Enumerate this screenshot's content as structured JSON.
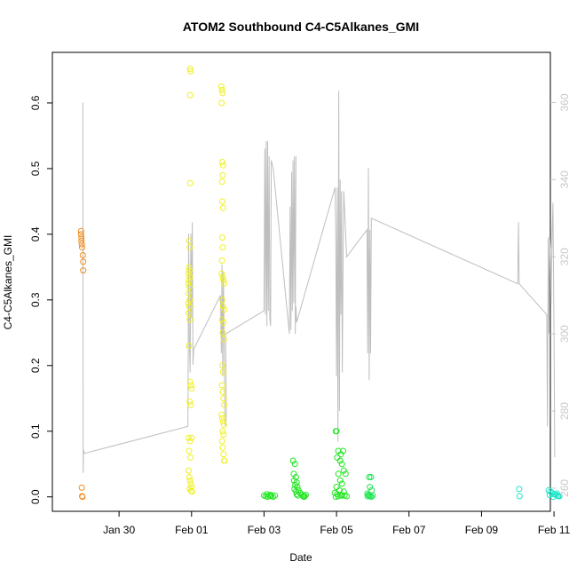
{
  "chart_data": {
    "type": "scatter",
    "title": "ATOM2 Southbound C4-C5Alkanes_GMI",
    "xlabel": "Date",
    "ylabel": "C4-C5Alkanes_GMI",
    "x_unit": "days since Jan 29 00:00",
    "xlim": [
      -0.84,
      12.9
    ],
    "ylim": [
      -0.022,
      0.677
    ],
    "y2lim": [
      254,
      373
    ],
    "x_ticks": [
      {
        "label": "Jan 30",
        "value": 1
      },
      {
        "label": "Feb 01",
        "value": 3
      },
      {
        "label": "Feb 03",
        "value": 5
      },
      {
        "label": "Feb 05",
        "value": 7
      },
      {
        "label": "Feb 07",
        "value": 9
      },
      {
        "label": "Feb 09",
        "value": 11
      },
      {
        "label": "Feb 11",
        "value": 13
      }
    ],
    "y_ticks": [
      "0.0",
      "0.1",
      "0.2",
      "0.3",
      "0.4",
      "0.5",
      "0.6"
    ],
    "y2_ticks": [
      "260",
      "280",
      "300",
      "320",
      "340",
      "360"
    ],
    "series": [
      {
        "color": "#f08c1e",
        "points": [
          [
            -0.05,
            0.405
          ],
          [
            -0.05,
            0.4
          ],
          [
            -0.04,
            0.395
          ],
          [
            -0.04,
            0.39
          ],
          [
            -0.03,
            0.385
          ],
          [
            -0.02,
            0.38
          ],
          [
            0.0,
            0.368
          ],
          [
            0.01,
            0.358
          ],
          [
            0.01,
            0.345
          ],
          [
            -0.03,
            0.014
          ],
          [
            -0.02,
            0.001
          ],
          [
            -0.01,
            0.0
          ]
        ]
      },
      {
        "color": "#f0f01e",
        "points": [
          [
            2.96,
            0.652
          ],
          [
            2.97,
            0.648
          ],
          [
            2.96,
            0.612
          ],
          [
            2.96,
            0.478
          ],
          [
            2.93,
            0.39
          ],
          [
            2.95,
            0.38
          ],
          [
            2.93,
            0.35
          ],
          [
            2.94,
            0.345
          ],
          [
            2.92,
            0.34
          ],
          [
            2.95,
            0.335
          ],
          [
            2.93,
            0.33
          ],
          [
            2.91,
            0.325
          ],
          [
            2.94,
            0.32
          ],
          [
            2.92,
            0.31
          ],
          [
            2.95,
            0.3
          ],
          [
            2.91,
            0.295
          ],
          [
            2.94,
            0.29
          ],
          [
            2.92,
            0.28
          ],
          [
            2.95,
            0.27
          ],
          [
            2.93,
            0.23
          ],
          [
            2.96,
            0.175
          ],
          [
            2.98,
            0.17
          ],
          [
            3.0,
            0.165
          ],
          [
            2.95,
            0.145
          ],
          [
            2.98,
            0.14
          ],
          [
            2.92,
            0.09
          ],
          [
            2.96,
            0.085
          ],
          [
            3.0,
            0.09
          ],
          [
            2.93,
            0.07
          ],
          [
            2.97,
            0.06
          ],
          [
            2.92,
            0.04
          ],
          [
            2.94,
            0.03
          ],
          [
            2.96,
            0.025
          ],
          [
            2.98,
            0.02
          ],
          [
            3.0,
            0.015
          ],
          [
            2.95,
            0.012
          ],
          [
            2.99,
            0.009
          ],
          [
            3.01,
            0.008
          ],
          [
            3.82,
            0.625
          ],
          [
            3.84,
            0.62
          ],
          [
            3.86,
            0.615
          ],
          [
            3.83,
            0.6
          ],
          [
            3.85,
            0.51
          ],
          [
            3.87,
            0.505
          ],
          [
            3.86,
            0.49
          ],
          [
            3.84,
            0.48
          ],
          [
            3.85,
            0.45
          ],
          [
            3.87,
            0.44
          ],
          [
            3.85,
            0.395
          ],
          [
            3.86,
            0.38
          ],
          [
            3.84,
            0.36
          ],
          [
            3.83,
            0.34
          ],
          [
            3.86,
            0.335
          ],
          [
            3.88,
            0.33
          ],
          [
            3.9,
            0.325
          ],
          [
            3.85,
            0.3
          ],
          [
            3.87,
            0.29
          ],
          [
            3.9,
            0.285
          ],
          [
            3.84,
            0.27
          ],
          [
            3.88,
            0.265
          ],
          [
            3.86,
            0.25
          ],
          [
            3.89,
            0.24
          ],
          [
            3.85,
            0.2
          ],
          [
            3.87,
            0.19
          ],
          [
            3.84,
            0.17
          ],
          [
            3.86,
            0.16
          ],
          [
            3.88,
            0.15
          ],
          [
            3.9,
            0.14
          ],
          [
            3.83,
            0.125
          ],
          [
            3.85,
            0.12
          ],
          [
            3.87,
            0.115
          ],
          [
            3.89,
            0.11
          ],
          [
            3.86,
            0.1
          ],
          [
            3.88,
            0.095
          ],
          [
            3.84,
            0.085
          ],
          [
            3.86,
            0.075
          ],
          [
            3.88,
            0.065
          ],
          [
            3.9,
            0.055
          ],
          [
            3.91,
            0.055
          ]
        ]
      },
      {
        "color": "#1ee61e",
        "points": [
          [
            5.0,
            0.002
          ],
          [
            5.05,
            0.001
          ],
          [
            5.1,
            0.0
          ],
          [
            5.15,
            0.002
          ],
          [
            5.2,
            0.001
          ],
          [
            5.25,
            0.0
          ],
          [
            5.3,
            0.002
          ],
          [
            5.08,
            0.004
          ],
          [
            5.18,
            0.003
          ],
          [
            5.8,
            0.055
          ],
          [
            5.85,
            0.05
          ],
          [
            5.82,
            0.035
          ],
          [
            5.88,
            0.03
          ],
          [
            5.83,
            0.025
          ],
          [
            5.9,
            0.022
          ],
          [
            5.86,
            0.018
          ],
          [
            5.92,
            0.015
          ],
          [
            5.84,
            0.012
          ],
          [
            5.95,
            0.01
          ],
          [
            5.88,
            0.008
          ],
          [
            6.0,
            0.006
          ],
          [
            5.9,
            0.004
          ],
          [
            6.05,
            0.003
          ],
          [
            5.93,
            0.002
          ],
          [
            6.08,
            0.001
          ],
          [
            6.1,
            0.0
          ],
          [
            6.12,
            0.001
          ],
          [
            6.15,
            0.003
          ],
          [
            6.98,
            0.1
          ],
          [
            7.0,
            0.1
          ],
          [
            7.05,
            0.07
          ],
          [
            7.12,
            0.065
          ],
          [
            7.18,
            0.07
          ],
          [
            7.02,
            0.06
          ],
          [
            7.1,
            0.055
          ],
          [
            7.15,
            0.05
          ],
          [
            7.2,
            0.04
          ],
          [
            7.25,
            0.035
          ],
          [
            7.05,
            0.035
          ],
          [
            7.1,
            0.025
          ],
          [
            7.15,
            0.02
          ],
          [
            7.0,
            0.015
          ],
          [
            7.08,
            0.01
          ],
          [
            7.2,
            0.008
          ],
          [
            6.95,
            0.006
          ],
          [
            7.02,
            0.004
          ],
          [
            7.12,
            0.003
          ],
          [
            7.22,
            0.002
          ],
          [
            7.28,
            0.001
          ],
          [
            6.98,
            0.0
          ],
          [
            7.05,
            0.001
          ],
          [
            7.15,
            0.002
          ]
        ]
      },
      {
        "color": "#1ee650",
        "points": [
          [
            7.9,
            0.03
          ],
          [
            7.95,
            0.03
          ],
          [
            7.92,
            0.015
          ],
          [
            7.97,
            0.01
          ],
          [
            7.85,
            0.005
          ],
          [
            7.88,
            0.003
          ],
          [
            7.9,
            0.002
          ],
          [
            7.93,
            0.001
          ],
          [
            7.96,
            0.0
          ],
          [
            8.0,
            0.002
          ],
          [
            7.86,
            0.001
          ]
        ]
      },
      {
        "color": "#1ee6c8",
        "points": [
          [
            12.04,
            0.012
          ],
          [
            12.05,
            0.001
          ],
          [
            12.85,
            0.01
          ],
          [
            12.9,
            0.008
          ],
          [
            12.95,
            0.006
          ],
          [
            13.0,
            0.004
          ],
          [
            13.05,
            0.003
          ],
          [
            13.1,
            0.002
          ],
          [
            13.15,
            0.001
          ],
          [
            12.88,
            0.003
          ],
          [
            12.98,
            0.0
          ],
          [
            13.08,
            0.005
          ],
          [
            13.12,
            0.001
          ]
        ]
      }
    ],
    "secondary_line": {
      "color": "#bebebe",
      "points": [
        [
          0.0,
          360
        ],
        [
          0.01,
          264
        ],
        [
          0.02,
          270
        ],
        [
          0.04,
          269
        ],
        [
          2.9,
          276
        ],
        [
          2.92,
          326
        ],
        [
          2.94,
          298
        ],
        [
          2.96,
          290
        ],
        [
          2.98,
          326
        ],
        [
          3.0,
          304
        ],
        [
          3.02,
          329
        ],
        [
          3.04,
          292
        ],
        [
          3.06,
          296
        ],
        [
          3.8,
          310
        ],
        [
          3.82,
          295
        ],
        [
          3.84,
          318
        ],
        [
          3.86,
          289
        ],
        [
          3.88,
          316
        ],
        [
          3.9,
          298
        ],
        [
          3.92,
          278
        ],
        [
          3.94,
          276
        ],
        [
          3.96,
          279
        ],
        [
          3.94,
          300
        ],
        [
          5.0,
          306
        ],
        [
          5.02,
          348
        ],
        [
          5.04,
          305
        ],
        [
          5.06,
          350
        ],
        [
          5.08,
          302
        ],
        [
          5.1,
          350
        ],
        [
          5.12,
          306
        ],
        [
          5.14,
          346
        ],
        [
          5.16,
          304
        ],
        [
          5.18,
          302
        ],
        [
          5.2,
          345
        ],
        [
          5.25,
          343
        ],
        [
          5.7,
          300
        ],
        [
          5.72,
          333
        ],
        [
          5.74,
          301
        ],
        [
          5.76,
          342
        ],
        [
          5.78,
          306
        ],
        [
          5.8,
          345
        ],
        [
          5.82,
          308
        ],
        [
          5.84,
          346
        ],
        [
          5.86,
          305
        ],
        [
          5.88,
          346
        ],
        [
          5.86,
          300
        ],
        [
          5.88,
          307
        ],
        [
          5.9,
          303
        ],
        [
          6.96,
          338
        ],
        [
          6.98,
          325
        ],
        [
          7.0,
          289
        ],
        [
          7.02,
          338
        ],
        [
          7.04,
          272
        ],
        [
          7.06,
          363
        ],
        [
          7.08,
          280
        ],
        [
          7.1,
          340
        ],
        [
          7.12,
          305
        ],
        [
          7.14,
          337
        ],
        [
          7.16,
          290
        ],
        [
          7.18,
          320
        ],
        [
          7.2,
          337
        ],
        [
          7.28,
          320
        ],
        [
          7.84,
          327
        ],
        [
          7.86,
          295
        ],
        [
          7.88,
          343
        ],
        [
          7.9,
          288
        ],
        [
          7.92,
          327
        ],
        [
          7.94,
          295
        ],
        [
          7.96,
          330
        ],
        [
          12.0,
          313
        ],
        [
          12.02,
          329
        ],
        [
          12.04,
          313
        ],
        [
          12.8,
          305
        ],
        [
          12.82,
          276
        ],
        [
          12.84,
          325
        ],
        [
          12.86,
          300
        ],
        [
          12.88,
          325
        ],
        [
          12.9,
          322
        ],
        [
          12.92,
          308
        ],
        [
          12.95,
          326
        ],
        [
          12.97,
          334
        ],
        [
          13.0,
          300
        ],
        [
          13.02,
          268
        ]
      ]
    },
    "grid": false,
    "legend": "none"
  }
}
